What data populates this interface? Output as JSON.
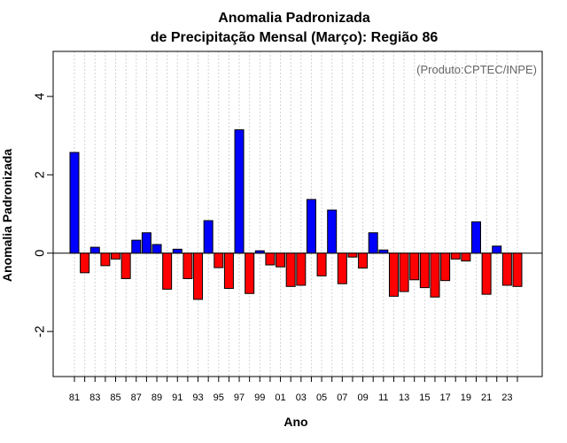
{
  "chart_data": {
    "type": "bar",
    "title": "Anomalia Padronizada",
    "subtitle": "de Precipitação Mensal (Março): Região 86",
    "xlabel": "Ano",
    "ylabel": "Anomalia Padronizada",
    "credit": "(Produto:CPTEC/INPE)",
    "ylim": [
      -3.15,
      5.15
    ],
    "yticks": [
      -2,
      0,
      2,
      4
    ],
    "ytick_labels": [
      "-2",
      "0",
      "2",
      "4"
    ],
    "grid": true,
    "colors": {
      "positive": "#0000ff",
      "negative": "#ff0000",
      "edge": "#000000",
      "grid": "#d3d3d3"
    },
    "x": [
      1981,
      1982,
      1983,
      1984,
      1985,
      1986,
      1987,
      1988,
      1989,
      1990,
      1991,
      1992,
      1993,
      1994,
      1995,
      1996,
      1997,
      1998,
      1999,
      2000,
      2001,
      2002,
      2003,
      2004,
      2005,
      2006,
      2007,
      2008,
      2009,
      2010,
      2011,
      2012,
      2013,
      2014,
      2015,
      2016,
      2017,
      2018,
      2019,
      2020,
      2021,
      2022,
      2023,
      2024
    ],
    "xtick_labels": [
      "81",
      "",
      "83",
      "",
      "85",
      "",
      "87",
      "",
      "89",
      "",
      "91",
      "",
      "93",
      "",
      "95",
      "",
      "97",
      "",
      "99",
      "",
      "01",
      "",
      "03",
      "",
      "05",
      "",
      "07",
      "",
      "09",
      "",
      "11",
      "",
      "13",
      "",
      "15",
      "",
      "17",
      "",
      "19",
      "",
      "21",
      "",
      "23",
      ""
    ],
    "values": [
      2.57,
      -0.5,
      0.15,
      -0.32,
      -0.15,
      -0.65,
      0.33,
      0.52,
      0.22,
      -0.92,
      0.1,
      -0.65,
      -1.18,
      0.83,
      -0.37,
      -0.9,
      3.15,
      -1.03,
      0.06,
      -0.3,
      -0.35,
      -0.85,
      -0.82,
      1.37,
      -0.58,
      1.1,
      -0.78,
      -0.1,
      -0.38,
      0.52,
      0.08,
      -1.1,
      -0.98,
      -0.68,
      -0.88,
      -1.12,
      -0.7,
      -0.15,
      -0.2,
      0.8,
      -1.05,
      0.18,
      -0.82,
      -0.85
    ]
  }
}
